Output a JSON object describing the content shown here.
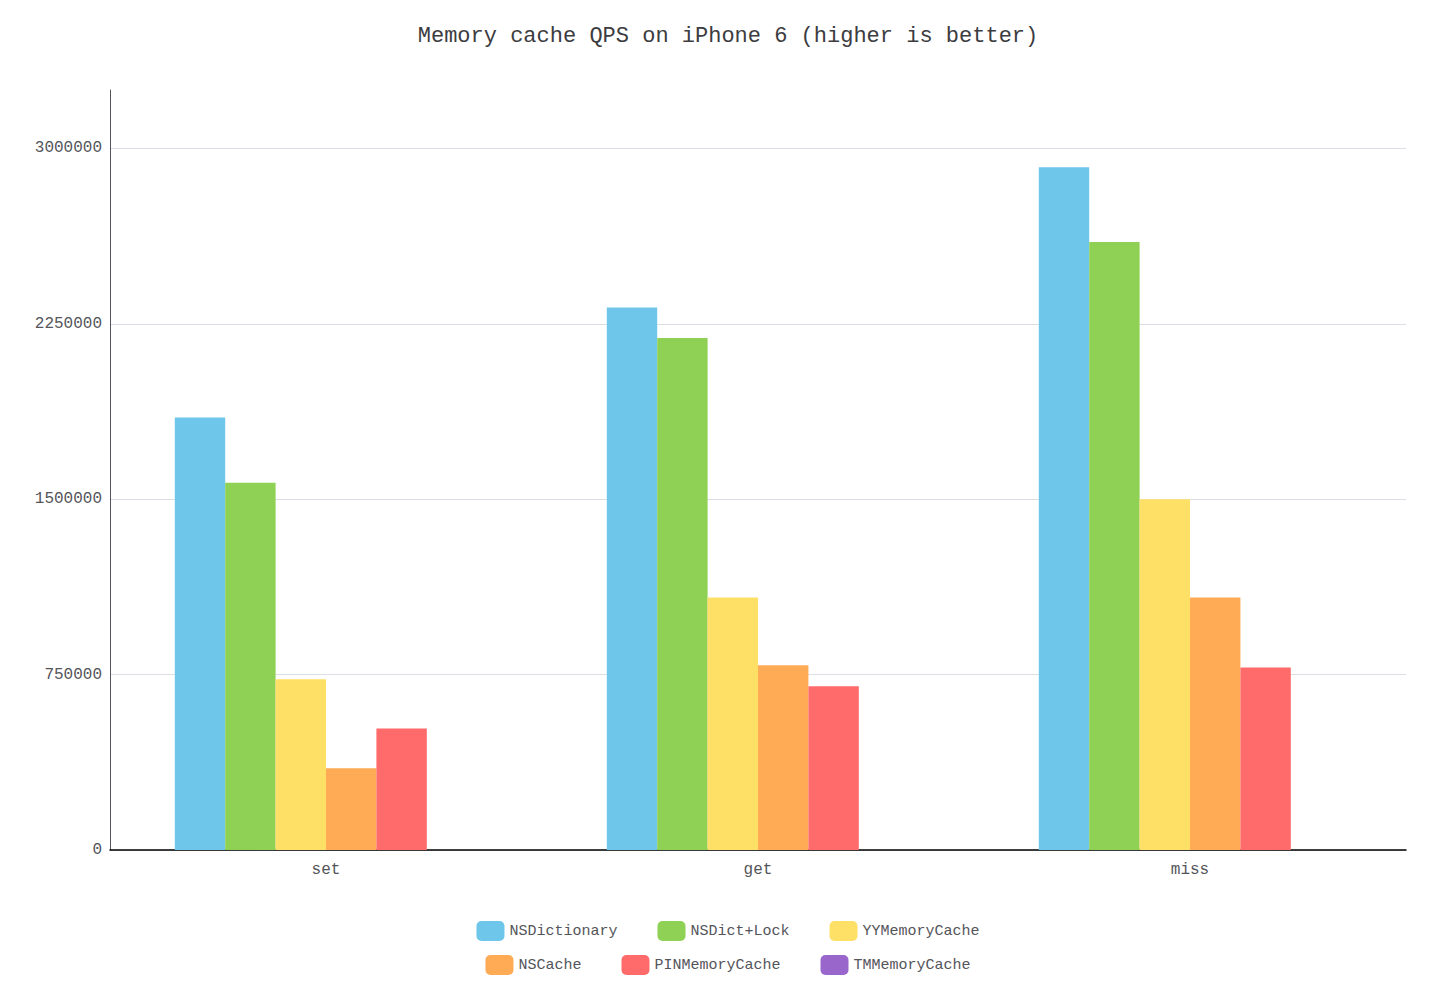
{
  "chart_data": {
    "type": "bar",
    "title": "Memory cache QPS on iPhone 6 (higher is better)",
    "categories": [
      "set",
      "get",
      "miss"
    ],
    "series": [
      {
        "name": "NSDictionary",
        "color": "#6EC6EA",
        "values": [
          1850000,
          2320000,
          2920000
        ]
      },
      {
        "name": "NSDict+Lock",
        "color": "#8ED155",
        "values": [
          1570000,
          2190000,
          2600000
        ]
      },
      {
        "name": "YYMemoryCache",
        "color": "#FFE066",
        "values": [
          730000,
          1080000,
          1500000
        ]
      },
      {
        "name": "NSCache",
        "color": "#FFAA55",
        "values": [
          350000,
          790000,
          1080000
        ]
      },
      {
        "name": "PINMemoryCache",
        "color": "#FF6B6B",
        "values": [
          520000,
          700000,
          780000
        ]
      },
      {
        "name": "TMMemoryCache",
        "color": "#9966CC",
        "values": [
          0,
          0,
          0
        ]
      }
    ],
    "ylim": [
      0,
      3250000
    ],
    "yticks": [
      0,
      750000,
      1500000,
      2250000,
      3000000
    ],
    "grid": true,
    "legend": "bottom"
  }
}
